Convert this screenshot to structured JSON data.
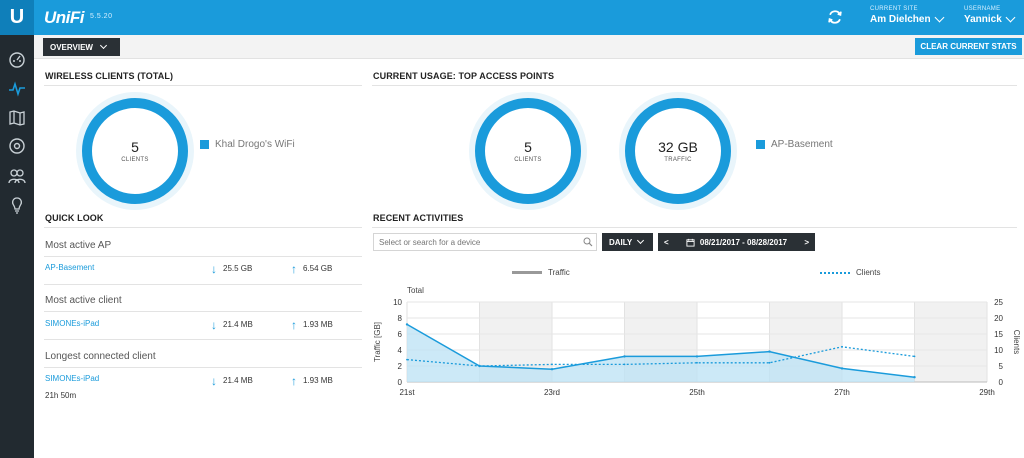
{
  "header": {
    "logo_letter": "U",
    "brand": "UniFi",
    "version": "5.5.20",
    "site_label": "CURRENT SITE",
    "site_value": "Am Dielchen",
    "user_label": "USERNAME",
    "user_value": "Yannick"
  },
  "toolbar": {
    "overview_label": "OVERVIEW",
    "clear_label": "CLEAR CURRENT STATS"
  },
  "wireless_clients": {
    "title": "WIRELESS CLIENTS (TOTAL)",
    "value": "5",
    "unit": "CLIENTS",
    "legend": "Khal Drogo's WiFi"
  },
  "current_usage": {
    "title": "CURRENT USAGE: TOP ACCESS POINTS",
    "clients_value": "5",
    "clients_unit": "CLIENTS",
    "traffic_value": "32 GB",
    "traffic_unit": "TRAFFIC",
    "legend": "AP-Basement"
  },
  "quick_look": {
    "title": "QUICK LOOK",
    "items": [
      {
        "label": "Most active AP",
        "name": "AP-Basement",
        "down": "25.5 GB",
        "up": "6.54 GB",
        "sub": ""
      },
      {
        "label": "Most active client",
        "name": "SIMONEs-iPad",
        "down": "21.4 MB",
        "up": "1.93 MB",
        "sub": ""
      },
      {
        "label": "Longest connected client",
        "name": "SIMONEs-iPad",
        "down": "21.4 MB",
        "up": "1.93 MB",
        "sub": "21h 50m"
      }
    ]
  },
  "recent_activities": {
    "title": "RECENT ACTIVITIES",
    "search_placeholder": "Select or search for a device",
    "range_label": "DAILY",
    "date_range": "08/21/2017 - 08/28/2017",
    "prev": "<",
    "next": ">"
  },
  "colors": {
    "accent": "#1a9bdb",
    "topbar": "#1a9bdb",
    "sidebar": "#222a30",
    "dark_button": "#2a3035"
  },
  "icons": [
    "dashboard-icon",
    "statistics-icon",
    "map-icon",
    "devices-icon",
    "clients-icon",
    "insights-icon",
    "refresh-icon",
    "search-icon",
    "calendar-icon"
  ],
  "chart_data": {
    "type": "line",
    "title": "Total",
    "legend": [
      "Traffic",
      "Clients"
    ],
    "ylabel": "Traffic [GB]",
    "y2label": "Clients",
    "ylim": [
      0,
      10
    ],
    "y2lim": [
      0,
      25
    ],
    "yticks": [
      0,
      2,
      4,
      6,
      8,
      10
    ],
    "y2ticks": [
      0,
      5,
      10,
      15,
      20,
      25
    ],
    "xticks": [
      "21st",
      "23rd",
      "25th",
      "27th",
      "29th"
    ],
    "x": [
      "21st",
      "22nd",
      "23rd",
      "24th",
      "25th",
      "26th",
      "27th",
      "28th"
    ],
    "series": [
      {
        "name": "Traffic",
        "values": [
          7.2,
          2.0,
          1.6,
          3.2,
          3.2,
          3.8,
          1.7,
          0.6
        ],
        "style": "area"
      },
      {
        "name": "Clients",
        "values": [
          7,
          5,
          5.5,
          5.5,
          6,
          6,
          11,
          8
        ],
        "style": "dotted"
      }
    ],
    "grid": true
  }
}
